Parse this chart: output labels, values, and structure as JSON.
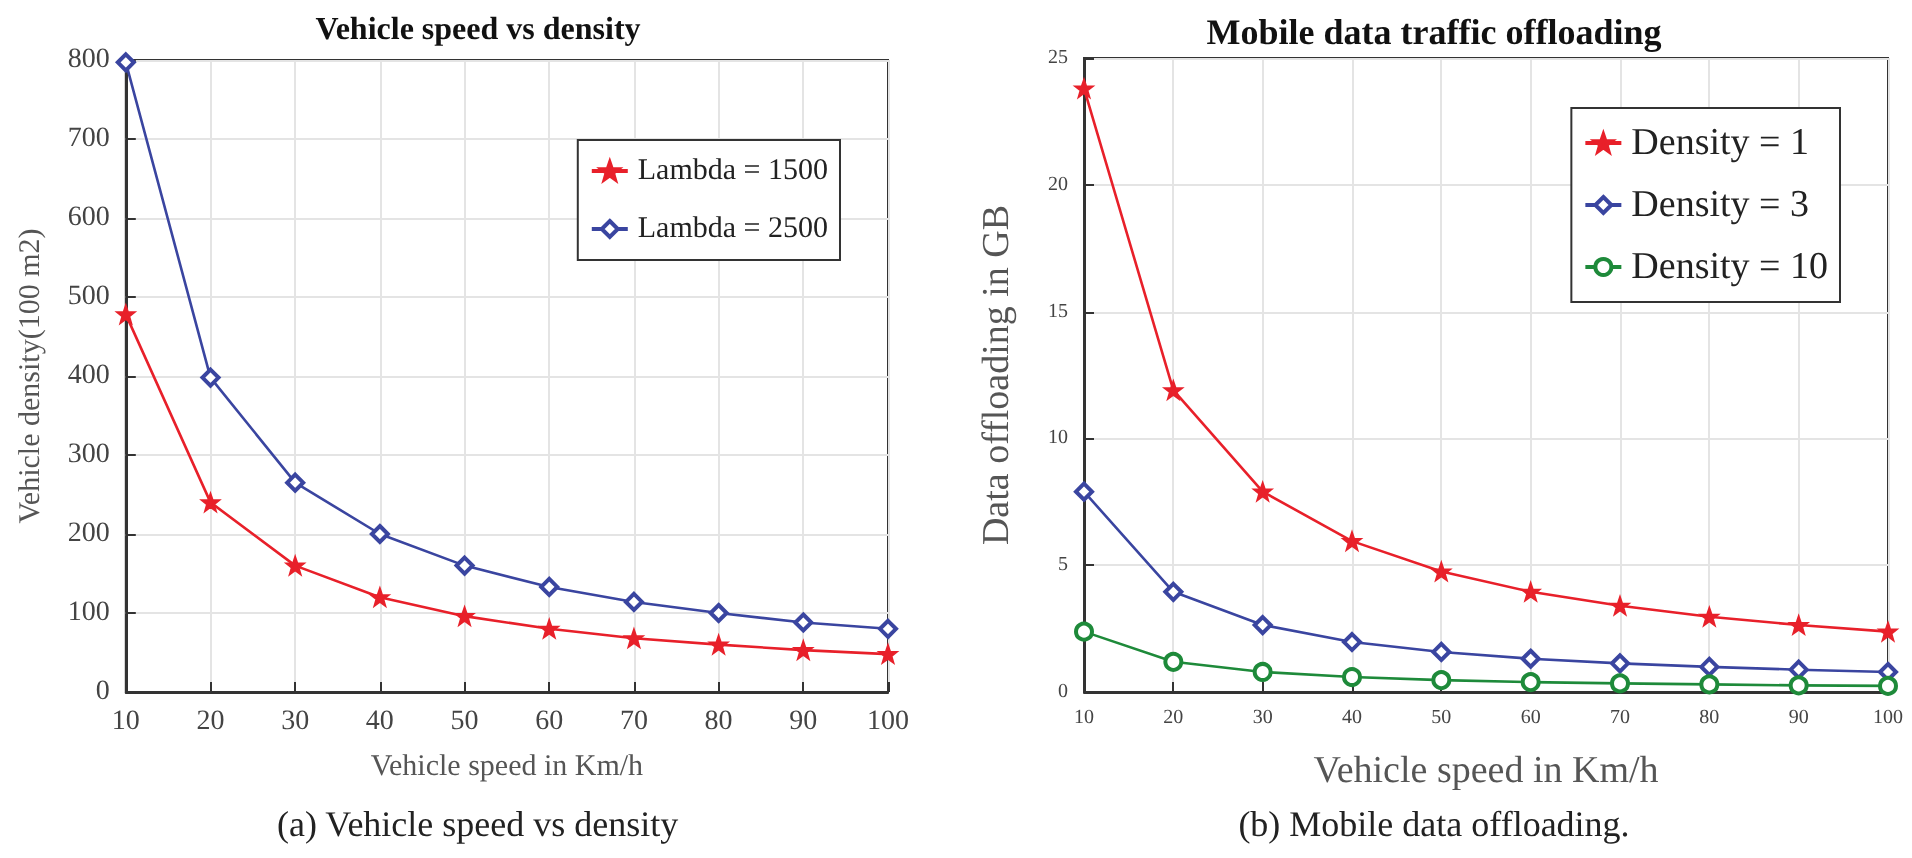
{
  "chart_data": [
    {
      "type": "line",
      "title": "Vehicle speed vs density",
      "xlabel": "Vehicle speed in Km/h",
      "ylabel": "Vehicle density(100 m2)",
      "x": [
        10,
        20,
        30,
        40,
        50,
        60,
        70,
        80,
        90,
        100
      ],
      "series": [
        {
          "name": "Lambda = 1500",
          "color": "#e8202a",
          "marker": "star",
          "values": [
            478,
            240,
            160,
            120,
            96,
            80,
            68,
            60,
            53,
            48
          ]
        },
        {
          "name": "Lambda = 2500",
          "color": "#3a45a0",
          "marker": "diamond",
          "values": [
            797,
            398,
            265,
            200,
            160,
            133,
            114,
            100,
            88,
            80
          ]
        }
      ],
      "xlim": [
        10,
        100
      ],
      "xticks": [
        10,
        20,
        30,
        40,
        50,
        60,
        70,
        80,
        90,
        100
      ],
      "ylim": [
        0,
        800
      ],
      "yticks": [
        0,
        100,
        200,
        300,
        400,
        500,
        600,
        700,
        800
      ],
      "grid": true,
      "legend": "top right",
      "line_style": "solid",
      "annotations": [
        "(a) Vehicle speed vs density"
      ]
    },
    {
      "type": "line",
      "title": "Mobile data traffic offloading",
      "xlabel": "Vehicle speed in Km/h",
      "ylabel": "Data offloading in GB",
      "x": [
        10,
        20,
        30,
        40,
        50,
        60,
        70,
        80,
        90,
        100
      ],
      "series": [
        {
          "name": "Density = 1",
          "color": "#e8202a",
          "marker": "star",
          "values": [
            23.8,
            11.9,
            7.9,
            5.95,
            4.75,
            3.95,
            3.4,
            2.97,
            2.64,
            2.38
          ]
        },
        {
          "name": "Density = 3",
          "color": "#3a45a0",
          "marker": "diamond",
          "values": [
            7.9,
            3.95,
            2.64,
            1.97,
            1.58,
            1.31,
            1.13,
            0.99,
            0.88,
            0.79
          ]
        },
        {
          "name": "Density = 10",
          "color": "#1e8a3a",
          "marker": "circle",
          "values": [
            2.38,
            1.19,
            0.79,
            0.59,
            0.47,
            0.39,
            0.34,
            0.3,
            0.26,
            0.24
          ]
        }
      ],
      "xlim": [
        10,
        100
      ],
      "xticks": [
        10,
        20,
        30,
        40,
        50,
        60,
        70,
        80,
        90,
        100
      ],
      "ylim": [
        0,
        25
      ],
      "yticks": [
        0,
        5,
        10,
        15,
        20,
        25
      ],
      "grid": true,
      "legend": "top right",
      "line_style": "solid",
      "annotations": [
        "(b) Mobile data offloading."
      ]
    }
  ]
}
